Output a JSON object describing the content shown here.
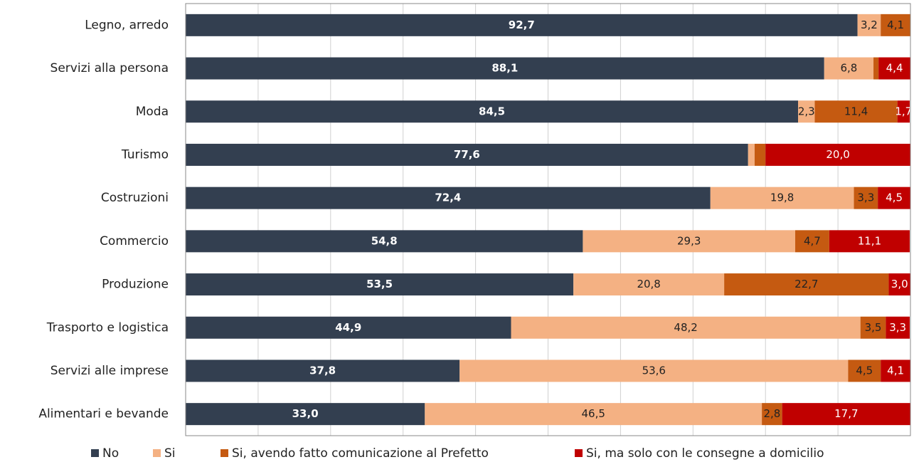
{
  "chart_data": {
    "type": "stacked_barh",
    "categories": [
      "Legno, arredo",
      "Servizi alla persona",
      "Moda",
      "Turismo",
      "Costruzioni",
      "Commercio",
      "Produzione",
      "Trasporto e logistica",
      "Servizi alle imprese",
      "Alimentari e bevande"
    ],
    "series": [
      {
        "name": "No",
        "color": "#333f50",
        "values": [
          92.7,
          88.1,
          84.5,
          77.6,
          72.4,
          54.8,
          53.5,
          44.9,
          37.8,
          33.0
        ],
        "value_labels": [
          "92,7",
          "88,1",
          "84,5",
          "77,6",
          "72,4",
          "54,8",
          "53,5",
          "44,9",
          "37,8",
          "33,0"
        ]
      },
      {
        "name": "Si",
        "color": "#f4b183",
        "values": [
          3.2,
          6.8,
          2.3,
          0.9,
          19.8,
          29.3,
          20.8,
          48.2,
          53.6,
          46.5
        ],
        "value_labels": [
          "3,2",
          "6,8",
          "2,3",
          null,
          "19,8",
          "29,3",
          "20,8",
          "48,2",
          "53,6",
          "46,5"
        ]
      },
      {
        "name": "Si, avendo fatto comunicazione al Prefetto",
        "color": "#c55a11",
        "values": [
          4.1,
          0.7,
          11.4,
          1.5,
          3.3,
          4.7,
          22.7,
          3.5,
          4.5,
          2.8
        ],
        "value_labels": [
          "4,1",
          null,
          "11,4",
          null,
          "3,3",
          "4,7",
          "22,7",
          "3,5",
          "4,5",
          "2,8"
        ]
      },
      {
        "name": "Si, ma solo con le consegne a domicilio",
        "color": "#c00000",
        "values": [
          0,
          4.4,
          1.7,
          20.0,
          4.5,
          11.1,
          3.0,
          3.3,
          4.1,
          17.7
        ],
        "value_labels": [
          null,
          "4,4",
          "1,7",
          "20,0",
          "4,5",
          "11,1",
          "3,0",
          "3,3",
          "4,1",
          "17,7"
        ]
      }
    ],
    "xlim": [
      0,
      100
    ],
    "xticks": [
      0,
      10,
      20,
      30,
      40,
      50,
      60,
      70,
      80,
      90,
      100
    ],
    "grid": true
  }
}
